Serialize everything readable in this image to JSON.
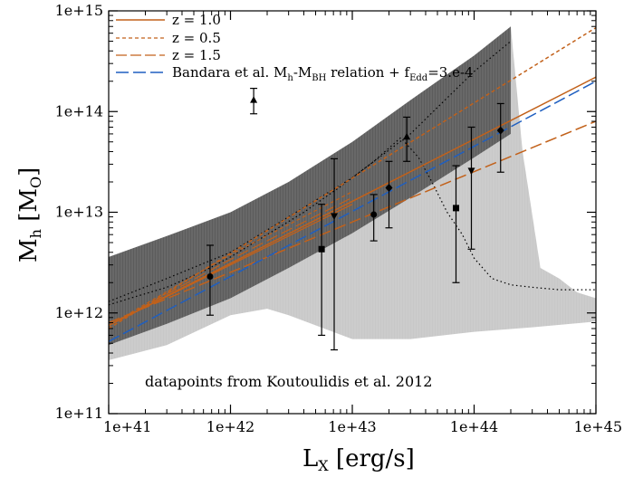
{
  "chart_data": {
    "type": "line",
    "xlabel": "L",
    "xlabel_sub": "X",
    "xlabel_unit": " [erg/s]",
    "ylabel": "M",
    "ylabel_sub": "h",
    "ylabel_unit": " [M",
    "ylabel_unit_sub": "O",
    "ylabel_unit_close": "]",
    "x_scale": "log",
    "y_scale": "log",
    "xlim": [
      1e+41,
      1e+45
    ],
    "ylim": [
      100000000000.0,
      1000000000000000.0
    ],
    "x_ticks": [
      {
        "value": 1e+41,
        "label": "1e+41"
      },
      {
        "value": 1e+42,
        "label": "1e+42"
      },
      {
        "value": 1e+43,
        "label": "1e+43"
      },
      {
        "value": 1e+44,
        "label": "1e+44"
      },
      {
        "value": 1e+45,
        "label": "1e+45"
      }
    ],
    "y_ticks": [
      {
        "value": 100000000000.0,
        "label": "1e+11"
      },
      {
        "value": 1000000000000.0,
        "label": "1e+12"
      },
      {
        "value": 10000000000000.0,
        "label": "1e+13"
      },
      {
        "value": 100000000000000.0,
        "label": "1e+14"
      },
      {
        "value": 1000000000000000.0,
        "label": "1e+15"
      }
    ],
    "legend_position": "top-left",
    "legend": [
      {
        "label": "z = 1.0",
        "color": "#c2611a",
        "style": "solid"
      },
      {
        "label": "z = 0.5",
        "color": "#c2611a",
        "style": "short-dash"
      },
      {
        "label": "z = 1.5",
        "color": "#c2611a",
        "style": "long-dash"
      },
      {
        "label_main": "Bandara et al. M",
        "label_sub1": "h",
        "label_mid": "-M",
        "label_sub2": "BH",
        "label_rel": " relation + f",
        "label_sub3": "Edd",
        "label_end": "=3.e-4",
        "color": "#1f5fc0",
        "style": "long-dash"
      }
    ],
    "annotation": "datapoints from Koutoulidis et al. 2012",
    "series": [
      {
        "name": "z = 1.0",
        "color": "#c2611a",
        "style": "solid",
        "x": [
          1e+41,
          1e+45
        ],
        "y": [
          750000000000.0,
          220000000000000.0
        ]
      },
      {
        "name": "z = 0.5",
        "color": "#c2611a",
        "style": "short-dash",
        "x": [
          1e+41,
          1e+45
        ],
        "y": [
          700000000000.0,
          680000000000000.0
        ]
      },
      {
        "name": "z = 1.5",
        "color": "#c2611a",
        "style": "long-dash",
        "x": [
          1e+41,
          1e+45
        ],
        "y": [
          800000000000.0,
          80000000000000.0
        ]
      },
      {
        "name": "Bandara et al. Mh-MBH relation + fEdd=3.e-4",
        "color": "#1f5fc0",
        "style": "long-dash",
        "x": [
          1e+41,
          1e+45
        ],
        "y": [
          520000000000.0,
          200000000000000.0
        ]
      }
    ],
    "extra_lines": [
      {
        "color": "#c2611a",
        "style": "solid",
        "x": [
          1e+41,
          1e+42,
          1e+43
        ],
        "y": [
          750000000000.0,
          3000000000000.0,
          12000000000000.0
        ]
      },
      {
        "color": "#c2611a",
        "style": "short-dash",
        "x": [
          1e+41,
          1e+42,
          1e+43
        ],
        "y": [
          750000000000.0,
          3800000000000.0,
          16000000000000.0
        ]
      },
      {
        "color": "#c2611a",
        "style": "long-dash",
        "x": [
          1e+41,
          1e+42,
          1e+43
        ],
        "y": [
          750000000000.0,
          3400000000000.0,
          14000000000000.0
        ]
      }
    ],
    "dotted_curve": {
      "color": "#000000",
      "x": [
        1e+41,
        1.5e+41,
        3e+41,
        6e+41,
        1e+42,
        2e+42,
        4e+42,
        8e+42,
        1.5e+43,
        2.5e+43,
        3.5e+43,
        4.5e+43,
        6e+43,
        8e+43,
        1e+44,
        1.4e+44,
        2e+44,
        3e+44,
        5e+44,
        1e+45
      ],
      "y": [
        1200000000000.0,
        1400000000000.0,
        1800000000000.0,
        2600000000000.0,
        3600000000000.0,
        6000000000000.0,
        10000000000000.0,
        18000000000000.0,
        32000000000000.0,
        55000000000000.0,
        35000000000000.0,
        20000000000000.0,
        10000000000000.0,
        6000000000000.0,
        3500000000000.0,
        2200000000000.0,
        1900000000000.0,
        1800000000000.0,
        1700000000000.0,
        1700000000000.0
      ]
    },
    "dotted_curve_upper": {
      "color": "#000000",
      "x": [
        1e+41,
        3e+41,
        1e+42,
        3e+42,
        1e+43,
        3e+43,
        1e+44,
        2e+44
      ],
      "y": [
        1300000000000.0,
        2200000000000.0,
        4000000000000.0,
        9000000000000.0,
        22000000000000.0,
        60000000000000.0,
        250000000000000.0,
        500000000000000.0
      ]
    },
    "bands": [
      {
        "name": "light band",
        "color": "#c8c8c8",
        "upper_x": [
          1e+41,
          3e+41,
          1e+42,
          3e+42,
          1e+43,
          3e+43,
          1e+44,
          2e+44,
          2.5e+44,
          3.5e+44,
          5e+44,
          7e+44,
          1e+45
        ],
        "upper_y": [
          1600000000000.0,
          3200000000000.0,
          6500000000000.0,
          15000000000000.0,
          36000000000000.0,
          100000000000000.0,
          300000000000000.0,
          700000000000000.0,
          40000000000000.0,
          2800000000000.0,
          2200000000000.0,
          1600000000000.0,
          1400000000000.0
        ],
        "lower_x": [
          1e+41,
          3e+41,
          1e+42,
          2e+42,
          3e+42,
          1e+43,
          3e+43,
          1e+44,
          3e+44,
          1e+45
        ],
        "lower_y": [
          340000000000.0,
          480000000000.0,
          950000000000.0,
          1100000000000.0,
          950000000000.0,
          550000000000.0,
          550000000000.0,
          650000000000.0,
          720000000000.0,
          820000000000.0
        ]
      },
      {
        "name": "dark band",
        "color": "#5c5c5c",
        "upper_x": [
          1e+41,
          3e+41,
          1e+42,
          3e+42,
          1e+43,
          3e+43,
          1e+44,
          2e+44
        ],
        "upper_y": [
          3600000000000.0,
          5800000000000.0,
          10000000000000.0,
          20000000000000.0,
          50000000000000.0,
          130000000000000.0,
          360000000000000.0,
          700000000000000.0
        ],
        "lower_x": [
          1e+41,
          3e+41,
          1e+42,
          3e+42,
          1e+43,
          3e+43,
          1e+44,
          2e+44
        ],
        "lower_y": [
          480000000000.0,
          780000000000.0,
          1400000000000.0,
          2800000000000.0,
          6200000000000.0,
          14000000000000.0,
          35000000000000.0,
          60000000000000.0
        ]
      }
    ],
    "points": [
      {
        "x": 6.8e+41,
        "y": 2300000000000.0,
        "ylow": 950000000000.0,
        "yhigh": 4700000000000.0,
        "marker": "circle"
      },
      {
        "x": 1.55e+42,
        "y": 130000000000000.0,
        "ylow": 95000000000000.0,
        "yhigh": 170000000000000.0,
        "marker": "triangle-up"
      },
      {
        "x": 5.6e+42,
        "y": 4300000000000.0,
        "ylow": 600000000000.0,
        "yhigh": 12000000000000.0,
        "marker": "square"
      },
      {
        "x": 7.1e+42,
        "y": 9200000000000.0,
        "ylow": 430000000000.0,
        "yhigh": 34000000000000.0,
        "marker": "triangle-down"
      },
      {
        "x": 1.5e+43,
        "y": 9500000000000.0,
        "ylow": 5200000000000.0,
        "yhigh": 15000000000000.0,
        "marker": "circle"
      },
      {
        "x": 2e+43,
        "y": 17500000000000.0,
        "ylow": 7000000000000.0,
        "yhigh": 32000000000000.0,
        "marker": "diamond"
      },
      {
        "x": 2.8e+43,
        "y": 56000000000000.0,
        "ylow": 32000000000000.0,
        "yhigh": 88000000000000.0,
        "marker": "triangle-up"
      },
      {
        "x": 7.1e+43,
        "y": 11000000000000.0,
        "ylow": 2000000000000.0,
        "yhigh": 29000000000000.0,
        "marker": "square"
      },
      {
        "x": 9.5e+43,
        "y": 26000000000000.0,
        "ylow": 4300000000000.0,
        "yhigh": 70000000000000.0,
        "marker": "triangle-down"
      },
      {
        "x": 1.65e+44,
        "y": 65000000000000.0,
        "ylow": 25000000000000.0,
        "yhigh": 120000000000000.0,
        "marker": "diamond"
      }
    ]
  }
}
